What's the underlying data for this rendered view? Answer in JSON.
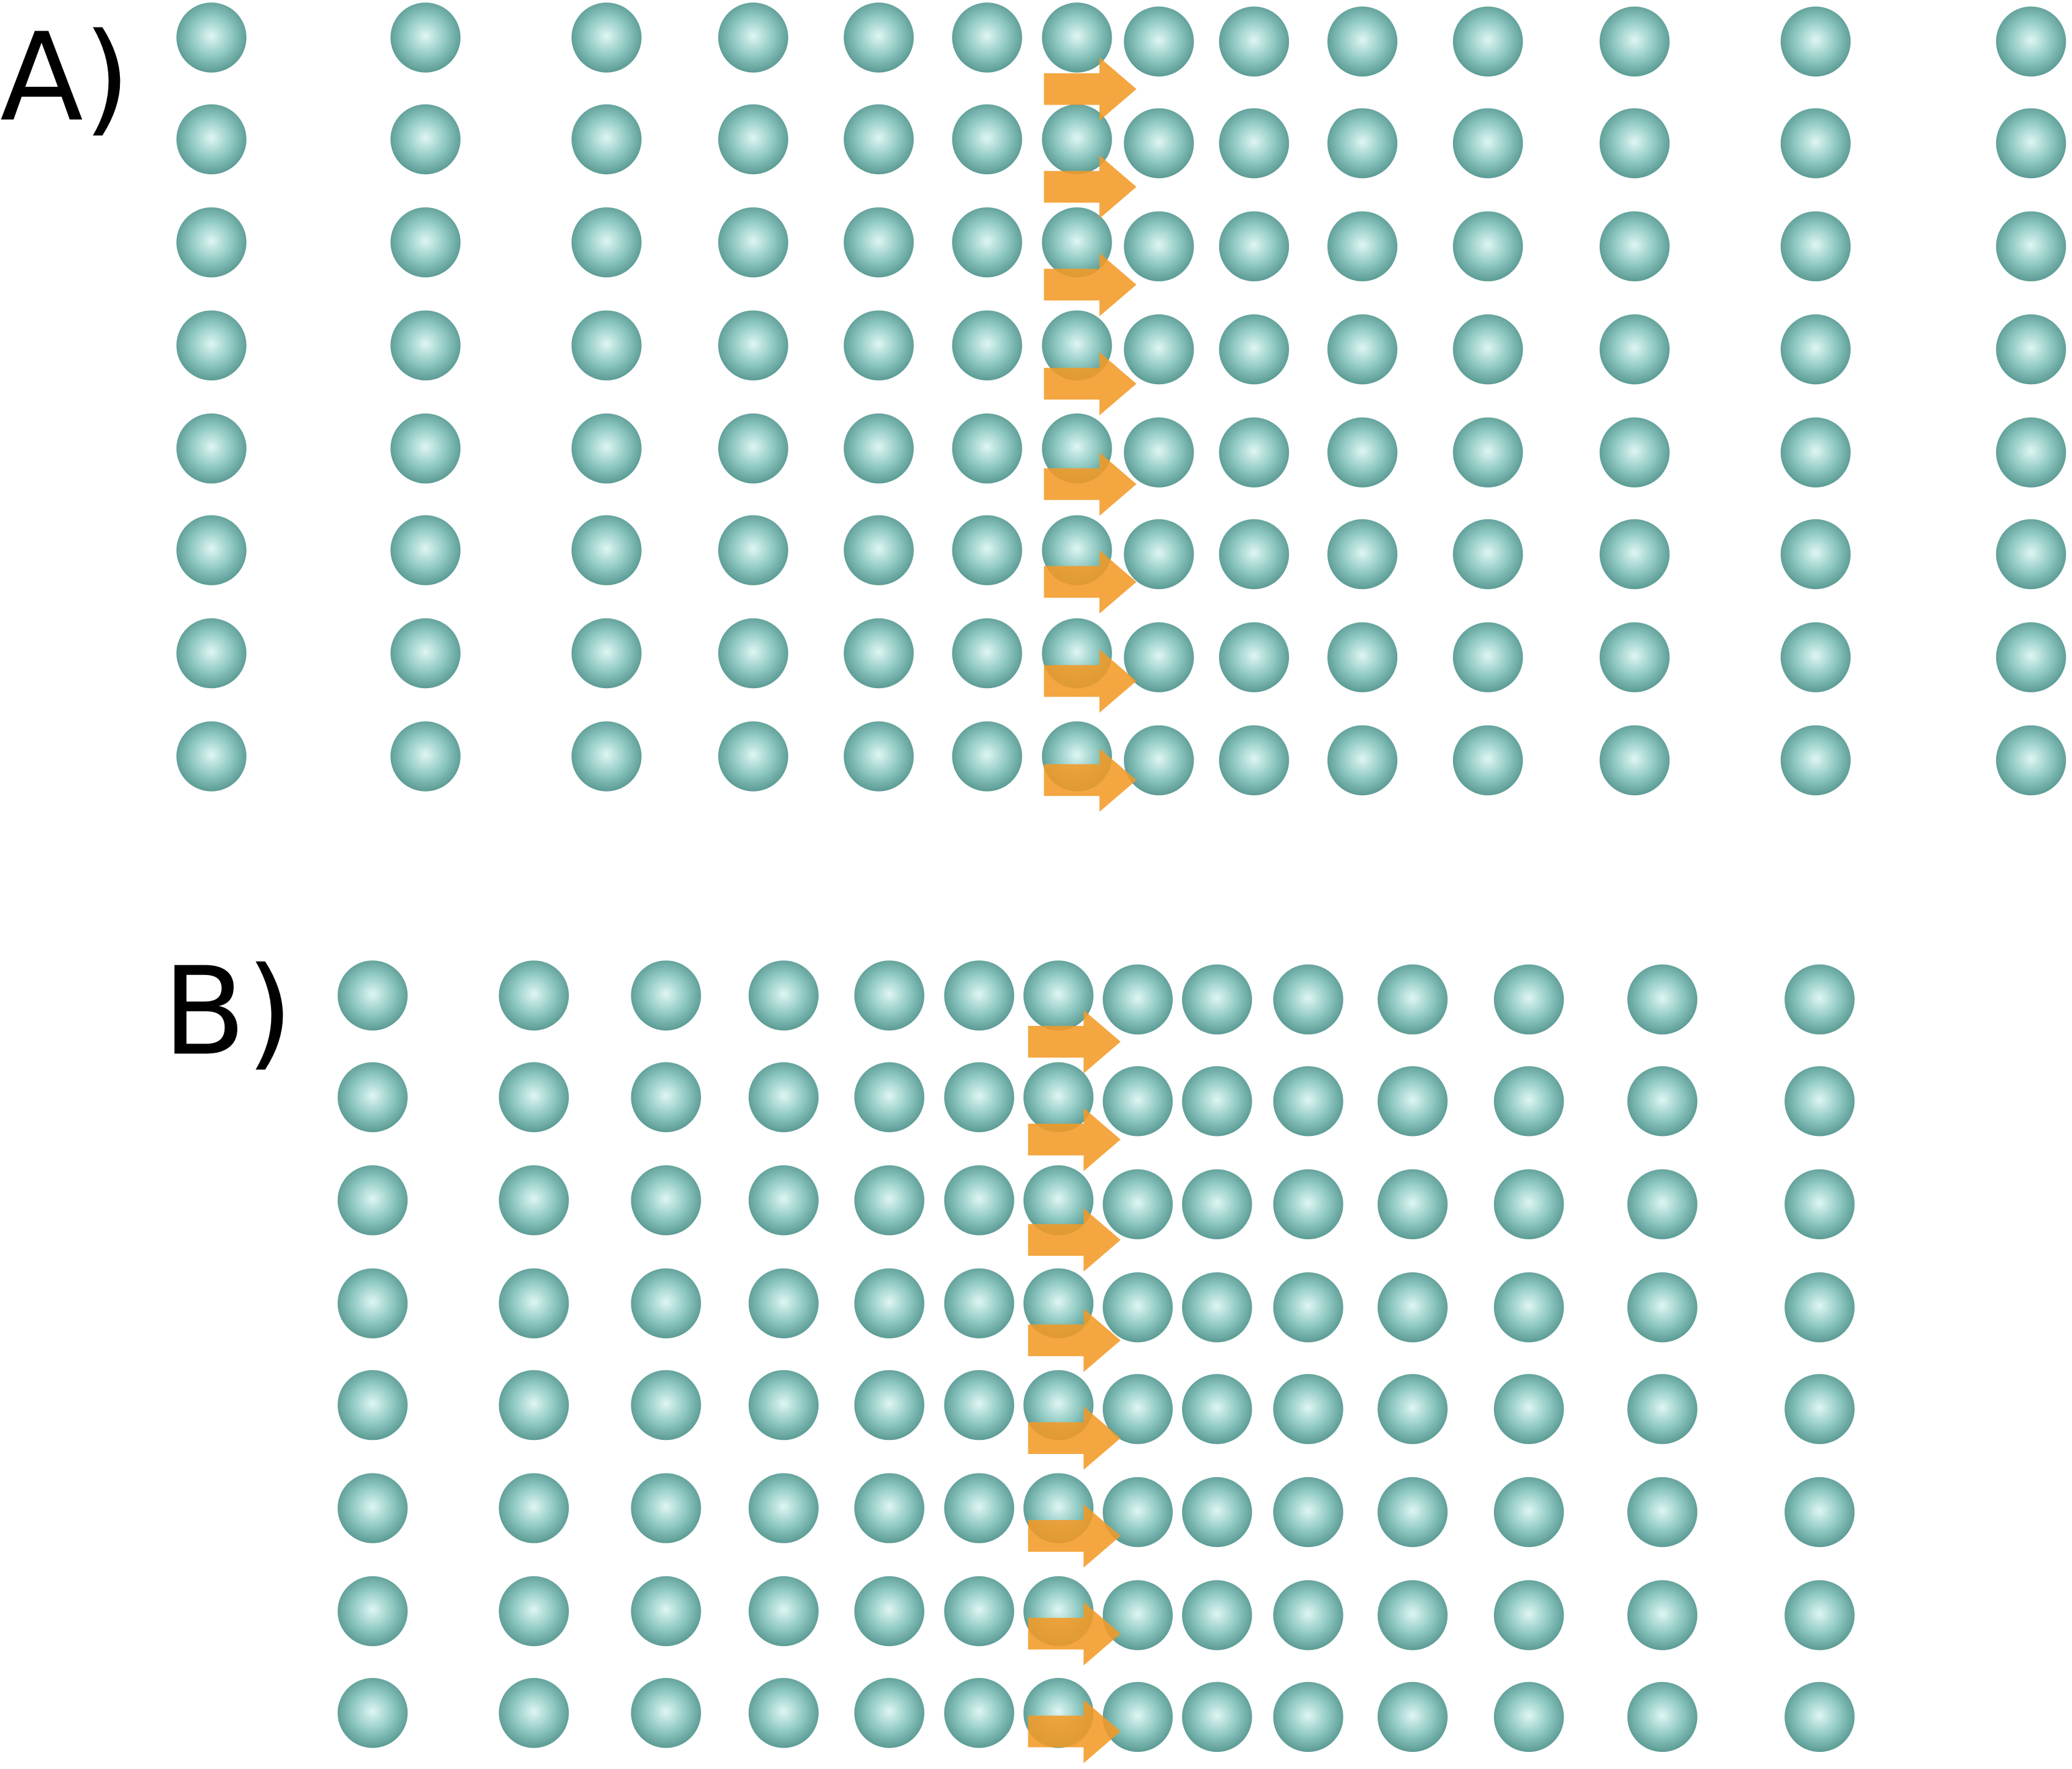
{
  "panels": [
    {
      "label": "A)"
    },
    {
      "label": "B)"
    }
  ],
  "colors": {
    "atom_center": "#dff6f3",
    "atom_mid": "#8cc7c0",
    "atom_edge": "#55958e",
    "arrow": "#f39a25",
    "background": "#ffffff"
  },
  "icons": {
    "atom": "sphere",
    "arrow": "right-arrow"
  }
}
